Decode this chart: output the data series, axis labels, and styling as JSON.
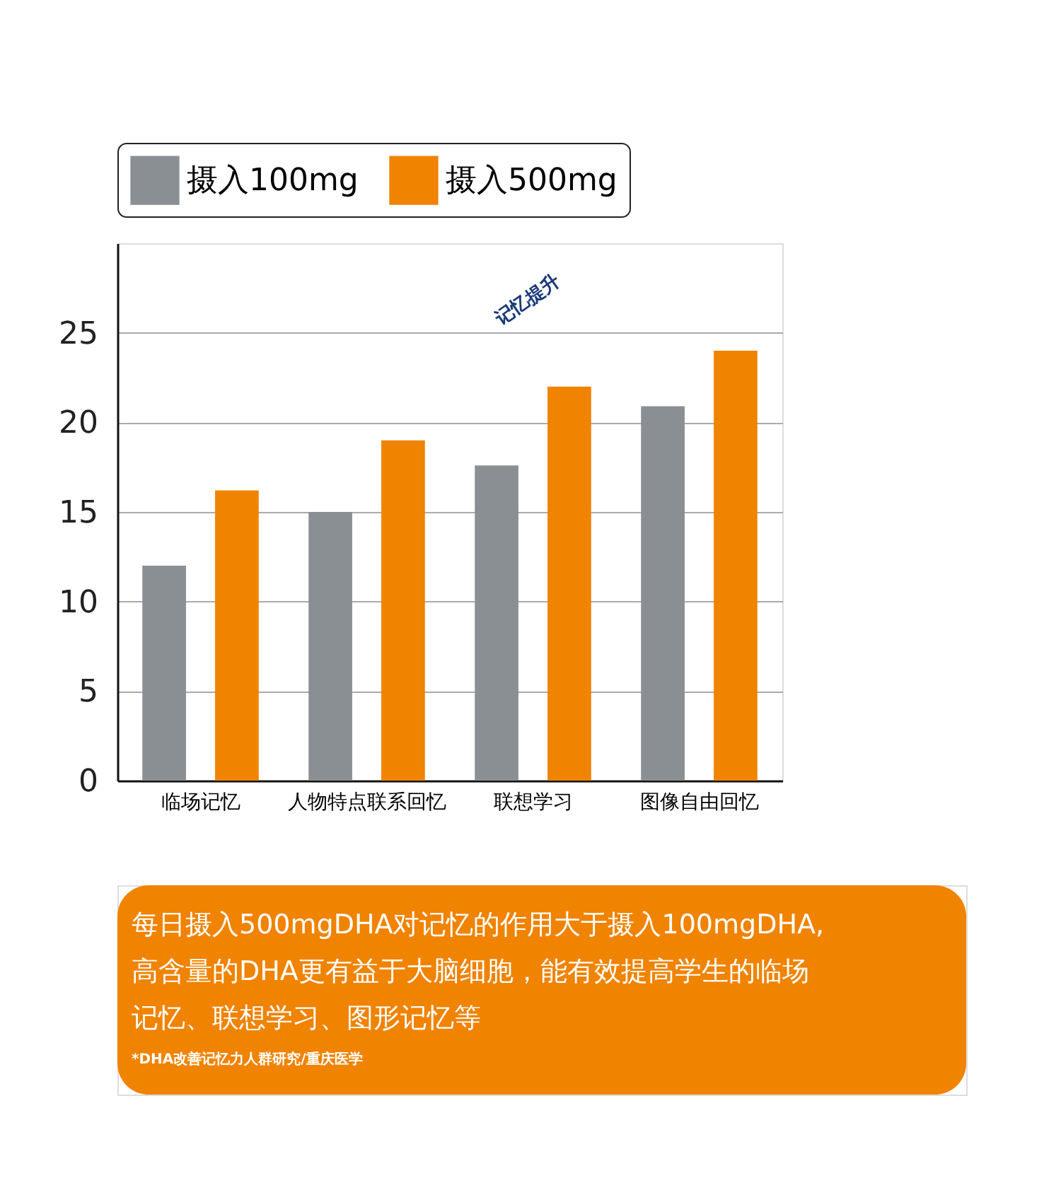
{
  "chart_data": {
    "type": "bar",
    "categories": [
      "临场记忆",
      "人物特点联系回忆",
      "联想学习",
      "图像自由回忆"
    ],
    "series": [
      {
        "name": "摄入100mg",
        "color": "#8a8f94",
        "values": [
          12,
          15,
          17.6,
          20.9
        ]
      },
      {
        "name": "摄入500mg",
        "color": "#f08300",
        "values": [
          16.2,
          19,
          22,
          24
        ]
      }
    ],
    "ylim": [
      0,
      30
    ],
    "yticks": [
      0,
      5,
      10,
      15,
      20,
      25
    ],
    "grid": "y",
    "legend": "top",
    "annotations": [
      "记忆提升",
      "每日摄入500mgDHA对记忆的作用大于摄入100mgDHA,",
      "高含量的DHA更有益于大脑细胞，能有效提高学生的临场",
      "记忆、联想学习、图形记忆等",
      "*DHA改善记忆力人群研究/重庆医学"
    ]
  }
}
